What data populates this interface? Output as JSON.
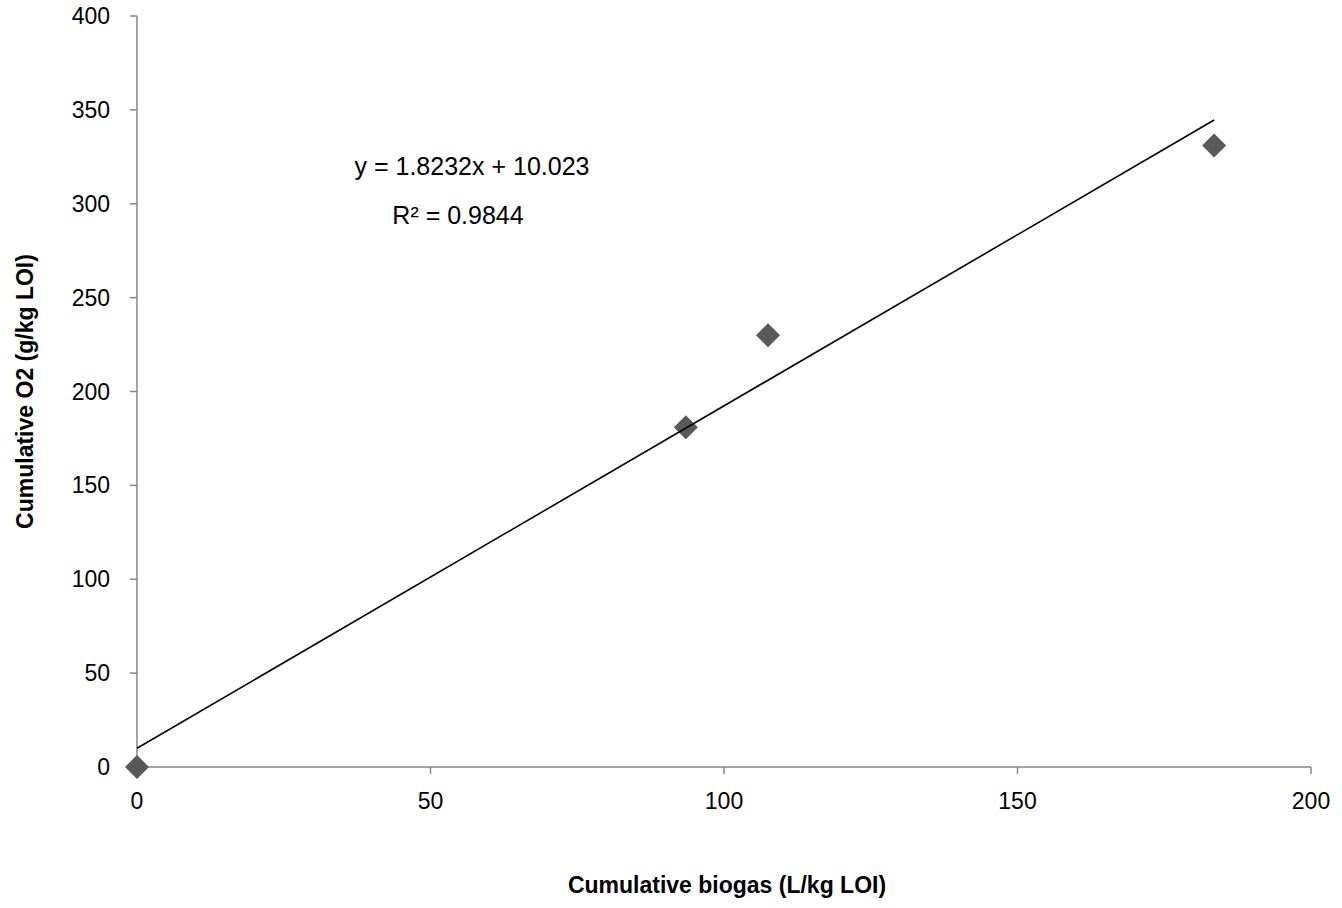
{
  "chart_data": {
    "type": "scatter",
    "x_label": "Cumulative biogas (L/kg LOI)",
    "y_label": "Cumulative O2 (g/kg LOI)",
    "annotations": [
      "y = 1.8232x + 10.023",
      "R² = 0.9844"
    ],
    "xlim": [
      0,
      200
    ],
    "xticks": [
      0,
      50,
      100,
      150,
      200
    ],
    "ylim": [
      0,
      400
    ],
    "yticks": [
      0,
      50,
      100,
      150,
      200,
      250,
      300,
      350,
      400
    ],
    "grid": false,
    "series": [
      {
        "type": "scatter",
        "color": "#595959",
        "marker": "diamond",
        "x": [
          0,
          93.5,
          107.5,
          183.5
        ],
        "values": [
          0,
          181,
          230,
          331
        ]
      },
      {
        "type": "line",
        "color": "#000000",
        "line_style": "solid",
        "x": [
          0,
          183.5
        ],
        "values": [
          10.0,
          344.6
        ]
      }
    ]
  }
}
